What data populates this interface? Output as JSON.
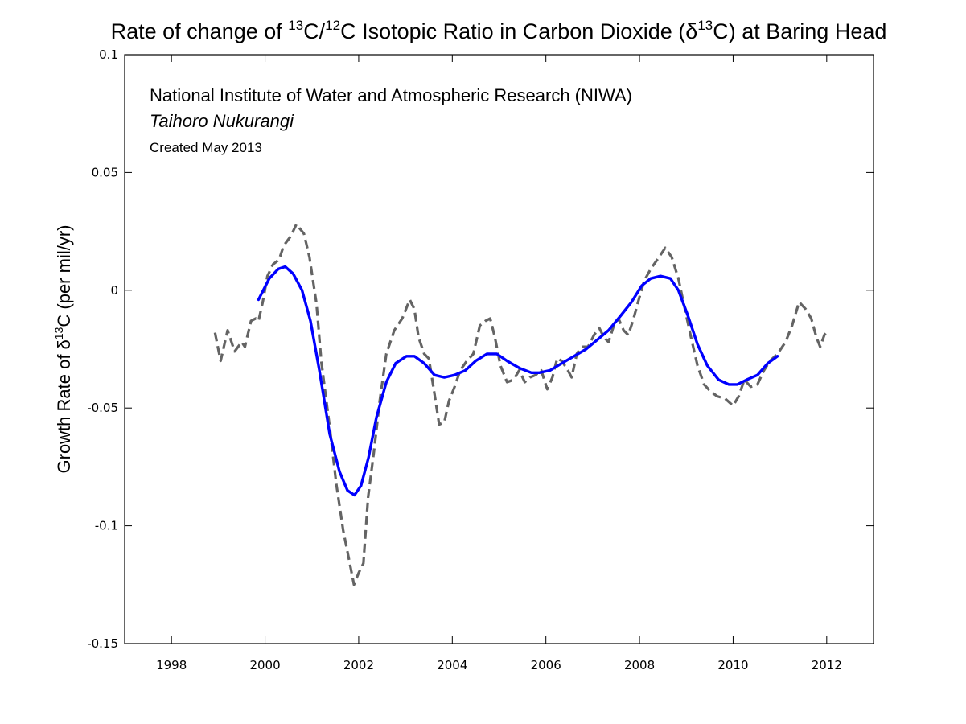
{
  "chart_data": {
    "type": "line",
    "title": {
      "prefix": "Rate of change of ",
      "sup1": "13",
      "mid1": "C/",
      "sup2": "12",
      "mid2": "C Isotopic Ratio in Carbon Dioxide (δ",
      "sup3": "13",
      "suffix": "C) at Baring Head"
    },
    "xlabel": "",
    "ylabel": {
      "prefix": "Growth Rate of δ",
      "sup": "13",
      "suffix": "C (per mil/yr)"
    },
    "xlim": [
      1997,
      2013
    ],
    "ylim": [
      -0.15,
      0.1
    ],
    "xticks": [
      1998,
      2000,
      2002,
      2004,
      2006,
      2008,
      2010,
      2012
    ],
    "xtick_labels": [
      "1998",
      "2000",
      "2002",
      "2004",
      "2006",
      "2008",
      "2010",
      "2012"
    ],
    "yticks": [
      0.1,
      0.05,
      0,
      -0.05,
      -0.1,
      -0.15
    ],
    "ytick_labels": [
      "0.1",
      "0.05",
      "0",
      "-0.05",
      "-0.1",
      "-0.15"
    ],
    "grid": false,
    "annotations": [
      {
        "text": "National Institute of Water and Atmospheric Research (NIWA)",
        "style": "normal"
      },
      {
        "text": "Taihoro Nukurangi",
        "style": "italic"
      },
      {
        "text": "Created May 2013",
        "style": "small"
      }
    ],
    "series": [
      {
        "name": "growth-rate-dashed",
        "color": "#646464",
        "style": "dashed",
        "x": [
          1998.93,
          1999.05,
          1999.2,
          1999.35,
          1999.5,
          1999.57,
          1999.7,
          1999.8,
          1999.86,
          1999.95,
          2000.05,
          2000.17,
          2000.3,
          2000.4,
          2000.55,
          2000.67,
          2000.83,
          2000.95,
          2001.1,
          2001.2,
          2001.38,
          2001.52,
          2001.67,
          2001.81,
          2001.9,
          2002.0,
          2002.1,
          2002.2,
          2002.33,
          2002.45,
          2002.59,
          2002.76,
          2002.93,
          2003.09,
          2003.19,
          2003.28,
          2003.4,
          2003.5,
          2003.62,
          2003.72,
          2003.83,
          2003.93,
          2004.05,
          2004.17,
          2004.31,
          2004.45,
          2004.59,
          2004.71,
          2004.81,
          2004.91,
          2005.03,
          2005.17,
          2005.31,
          2005.43,
          2005.55,
          2005.66,
          2005.78,
          2005.9,
          2006.03,
          2006.14,
          2006.24,
          2006.34,
          2006.47,
          2006.55,
          2006.66,
          2006.76,
          2006.9,
          2007.03,
          2007.14,
          2007.24,
          2007.34,
          2007.45,
          2007.55,
          2007.66,
          2007.76,
          2007.86,
          2007.97,
          2008.1,
          2008.24,
          2008.38,
          2008.55,
          2008.69,
          2008.83,
          2008.97,
          2009.1,
          2009.24,
          2009.38,
          2009.52,
          2009.66,
          2009.83,
          2010.0,
          2010.12,
          2010.24,
          2010.38,
          2010.52,
          2010.66,
          2010.79,
          2010.95,
          2011.12,
          2011.26,
          2011.41,
          2011.55,
          2011.67,
          2011.78,
          2011.86,
          2011.95,
          2012.02
        ],
        "y": [
          -0.018,
          -0.03,
          -0.017,
          -0.026,
          -0.022,
          -0.024,
          -0.013,
          -0.012,
          -0.013,
          -0.005,
          0.006,
          0.011,
          0.013,
          0.019,
          0.023,
          0.028,
          0.024,
          0.014,
          -0.006,
          -0.03,
          -0.058,
          -0.082,
          -0.102,
          -0.116,
          -0.125,
          -0.12,
          -0.116,
          -0.088,
          -0.068,
          -0.047,
          -0.027,
          -0.017,
          -0.012,
          -0.004,
          -0.008,
          -0.02,
          -0.027,
          -0.029,
          -0.044,
          -0.057,
          -0.056,
          -0.047,
          -0.041,
          -0.034,
          -0.03,
          -0.027,
          -0.015,
          -0.013,
          -0.012,
          -0.02,
          -0.032,
          -0.039,
          -0.038,
          -0.034,
          -0.039,
          -0.037,
          -0.036,
          -0.034,
          -0.042,
          -0.037,
          -0.029,
          -0.03,
          -0.034,
          -0.037,
          -0.027,
          -0.024,
          -0.024,
          -0.019,
          -0.016,
          -0.02,
          -0.022,
          -0.015,
          -0.012,
          -0.017,
          -0.019,
          -0.013,
          -0.005,
          0.004,
          0.009,
          0.013,
          0.018,
          0.014,
          0.005,
          -0.008,
          -0.02,
          -0.032,
          -0.04,
          -0.043,
          -0.045,
          -0.046,
          -0.049,
          -0.045,
          -0.038,
          -0.041,
          -0.04,
          -0.034,
          -0.03,
          -0.027,
          -0.022,
          -0.015,
          -0.005,
          -0.008,
          -0.012,
          -0.02,
          -0.024,
          -0.019,
          -0.017
        ]
      },
      {
        "name": "growth-rate-smoothed",
        "color": "#0000ff",
        "style": "solid",
        "x": [
          1999.86,
          2000.09,
          2000.28,
          2000.43,
          2000.6,
          2000.79,
          2000.97,
          2001.16,
          2001.38,
          2001.59,
          2001.76,
          2001.91,
          2002.05,
          2002.21,
          2002.38,
          2002.59,
          2002.79,
          2003.02,
          2003.19,
          2003.4,
          2003.62,
          2003.83,
          2004.05,
          2004.28,
          2004.5,
          2004.74,
          2004.95,
          2005.17,
          2005.43,
          2005.69,
          2005.86,
          2006.09,
          2006.34,
          2006.6,
          2006.86,
          2007.1,
          2007.34,
          2007.59,
          2007.83,
          2008.05,
          2008.24,
          2008.45,
          2008.66,
          2008.83,
          2009.02,
          2009.24,
          2009.45,
          2009.69,
          2009.91,
          2010.09,
          2010.29,
          2010.52,
          2010.74,
          2010.95
        ],
        "y": [
          -0.004,
          0.005,
          0.009,
          0.01,
          0.007,
          0.0,
          -0.013,
          -0.034,
          -0.061,
          -0.077,
          -0.085,
          -0.087,
          -0.083,
          -0.071,
          -0.054,
          -0.039,
          -0.031,
          -0.028,
          -0.028,
          -0.031,
          -0.036,
          -0.037,
          -0.036,
          -0.034,
          -0.03,
          -0.027,
          -0.027,
          -0.03,
          -0.033,
          -0.035,
          -0.035,
          -0.034,
          -0.031,
          -0.028,
          -0.025,
          -0.021,
          -0.017,
          -0.011,
          -0.005,
          0.002,
          0.005,
          0.006,
          0.005,
          0.0,
          -0.01,
          -0.023,
          -0.032,
          -0.038,
          -0.04,
          -0.04,
          -0.038,
          -0.036,
          -0.031,
          -0.028
        ]
      }
    ]
  }
}
